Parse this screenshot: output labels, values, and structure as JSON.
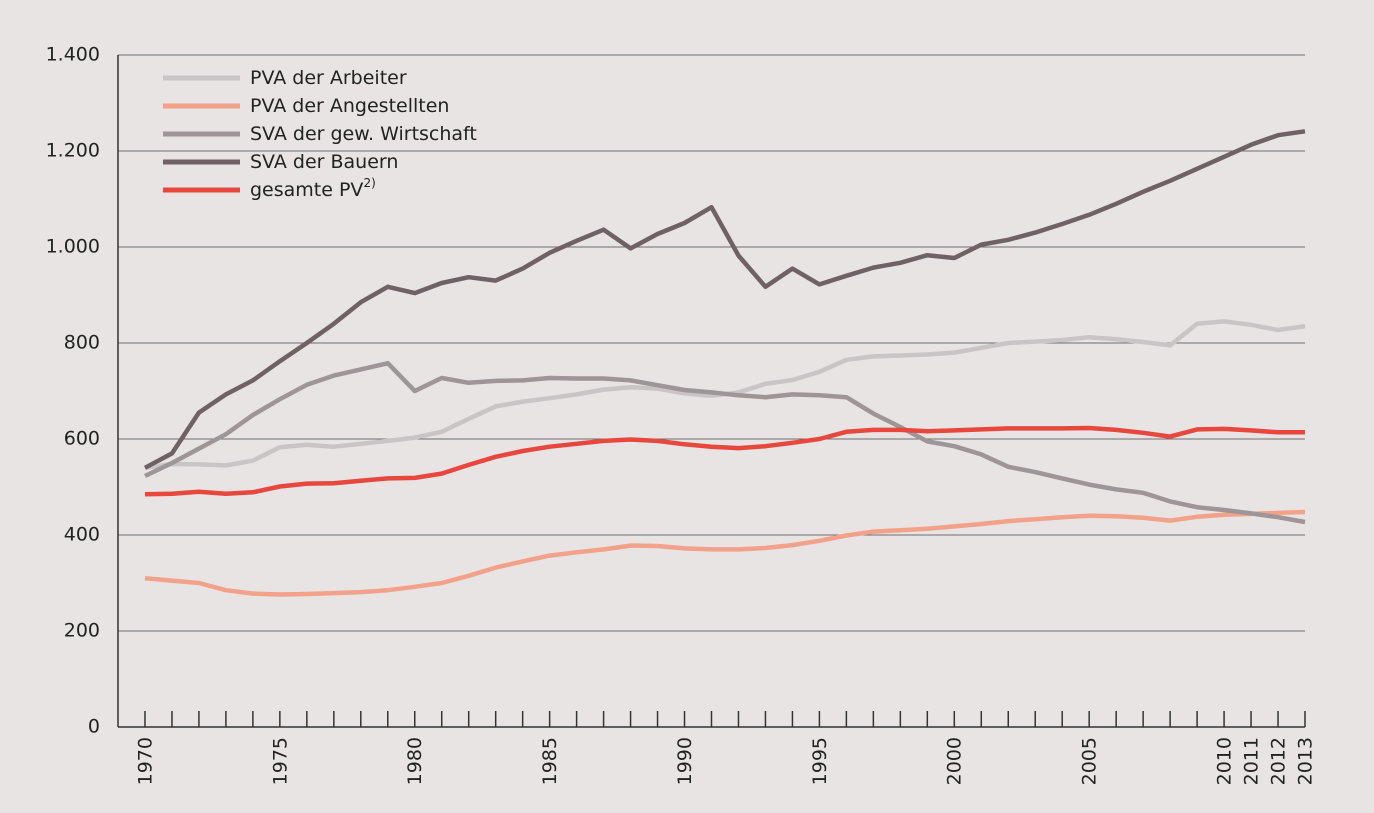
{
  "chart_data": {
    "type": "line",
    "x": [
      1970,
      1971,
      1972,
      1973,
      1974,
      1975,
      1976,
      1977,
      1978,
      1979,
      1980,
      1981,
      1982,
      1983,
      1984,
      1985,
      1986,
      1987,
      1988,
      1989,
      1990,
      1991,
      1992,
      1993,
      1994,
      1995,
      1996,
      1997,
      1998,
      1999,
      2000,
      2001,
      2002,
      2003,
      2004,
      2005,
      2006,
      2007,
      2008,
      2009,
      2010,
      2011,
      2012,
      2013
    ],
    "series": [
      {
        "name": "PVA der Arbeiter",
        "color": "#c9c4c5",
        "values": [
          540,
          548,
          547,
          545,
          555,
          583,
          588,
          584,
          590,
          596,
          603,
          615,
          642,
          668,
          678,
          685,
          693,
          703,
          708,
          705,
          695,
          690,
          697,
          715,
          723,
          740,
          765,
          772,
          774,
          776,
          780,
          790,
          800,
          803,
          806,
          812,
          808,
          802,
          795,
          840,
          845,
          838,
          827,
          835
        ]
      },
      {
        "name": "PVA der Angestellten",
        "color": "#f2a288",
        "values": [
          310,
          305,
          300,
          285,
          278,
          276,
          277,
          279,
          281,
          285,
          292,
          300,
          315,
          332,
          345,
          357,
          364,
          370,
          378,
          377,
          372,
          370,
          370,
          373,
          379,
          388,
          399,
          407,
          410,
          413,
          418,
          423,
          429,
          433,
          437,
          440,
          439,
          436,
          430,
          438,
          442,
          444,
          446,
          448
        ]
      },
      {
        "name": "SVA der gew. Wirtschaft",
        "color": "#9d9597",
        "values": [
          523,
          550,
          580,
          610,
          650,
          683,
          713,
          732,
          745,
          758,
          700,
          727,
          717,
          721,
          722,
          727,
          726,
          726,
          722,
          712,
          702,
          697,
          691,
          687,
          693,
          691,
          687,
          653,
          625,
          595,
          585,
          568,
          542,
          531,
          518,
          505,
          495,
          488,
          470,
          458,
          452,
          445,
          437,
          427
        ]
      },
      {
        "name": "SVA der Bauern",
        "color": "#6f6266",
        "values": [
          540,
          570,
          655,
          693,
          722,
          762,
          800,
          840,
          885,
          917,
          904,
          925,
          937,
          930,
          955,
          988,
          1013,
          1036,
          997,
          1027,
          1050,
          1083,
          982,
          917,
          955,
          922,
          940,
          957,
          967,
          983,
          977,
          1005,
          1015,
          1030,
          1048,
          1067,
          1090,
          1115,
          1138,
          1163,
          1188,
          1213,
          1233,
          1241
        ]
      },
      {
        "name": "gesamte PV",
        "footnote_marker": "2)",
        "color": "#e8473d",
        "values": [
          485,
          486,
          490,
          486,
          489,
          501,
          507,
          508,
          513,
          518,
          519,
          528,
          546,
          563,
          575,
          584,
          590,
          596,
          599,
          596,
          589,
          584,
          581,
          585,
          592,
          600,
          615,
          619,
          619,
          616,
          618,
          620,
          622,
          622,
          622,
          623,
          619,
          613,
          605,
          620,
          621,
          618,
          614,
          614
        ]
      }
    ],
    "xlim": [
      1969,
      2013
    ],
    "xticks": [
      1970,
      1975,
      1980,
      1985,
      1990,
      1995,
      2000,
      2005,
      2010,
      2011,
      2012,
      2013
    ],
    "ylim": [
      0,
      1400
    ],
    "yticks": [
      0,
      200,
      400,
      600,
      800,
      {
        "value": 1000,
        "label": "1.000"
      },
      {
        "value": 1200,
        "label": "1.200"
      },
      {
        "value": 1400,
        "label": "1.400"
      }
    ],
    "grid": true,
    "legend": "upper left"
  }
}
